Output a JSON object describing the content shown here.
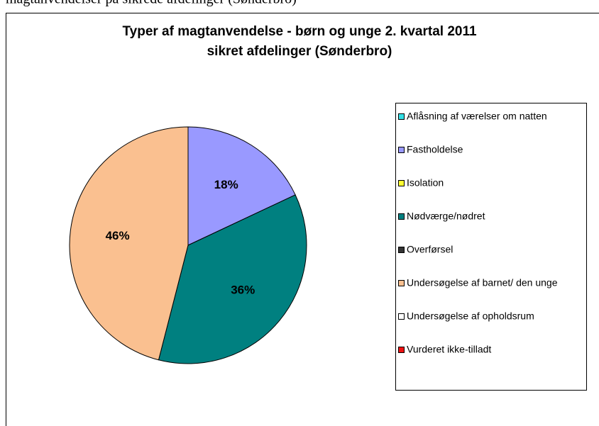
{
  "caption": "magtanvendelser på sikrede afdelinger (Sønderbro)",
  "chart_data": {
    "type": "pie",
    "title": [
      "Typer af magtanvendelse  - børn og unge 2. kvartal 2011",
      "sikret afdelinger (Sønderbro)"
    ],
    "categories": [
      "Aflåsning af værelser om natten",
      "Fastholdelse",
      "Isolation",
      "Nødværge/nødret",
      "Overførsel",
      "Undersøgelse af barnet/ den unge",
      "Undersøgelse af opholdsrum",
      "Vurderet ikke-tilladt"
    ],
    "series": [
      {
        "values": [
          0,
          18,
          0,
          36,
          0,
          46,
          0,
          0
        ],
        "value_labels": [
          null,
          "18%",
          null,
          "36%",
          null,
          "46%",
          null,
          null
        ],
        "colors": [
          "#33e0e6",
          "#9999ff",
          "#ffff33",
          "#008080",
          "#333333",
          "#fac090",
          "#ffffff",
          "#ee1111"
        ]
      }
    ],
    "legend": "right"
  }
}
